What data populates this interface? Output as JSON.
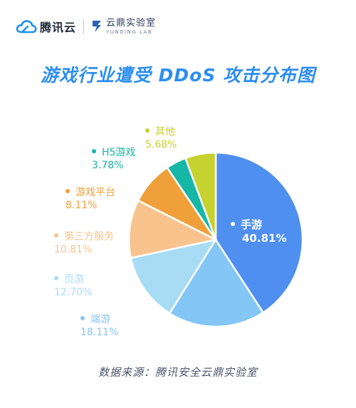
{
  "header": {
    "brand_name": "腾讯云",
    "lab_name": "云鼎实验室",
    "lab_name_en": "YUNDING LAB"
  },
  "chart_data": {
    "type": "pie",
    "title": "游戏行业遭受 DDoS 攻击分布图",
    "slices": [
      {
        "label": "手游",
        "value": 40.81,
        "value_text": "40.81%",
        "color": "#4f8ff0"
      },
      {
        "label": "端游",
        "value": 18.11,
        "value_text": "18.11%",
        "color": "#84c6f5"
      },
      {
        "label": "页游",
        "value": 12.7,
        "value_text": "12.70%",
        "color": "#a7dcf4"
      },
      {
        "label": "第三方服务",
        "value": 10.81,
        "value_text": "10.81%",
        "color": "#f9c38e"
      },
      {
        "label": "游戏平台",
        "value": 8.11,
        "value_text": "8.11%",
        "color": "#f0a03a"
      },
      {
        "label": "H5游戏",
        "value": 3.78,
        "value_text": "3.78%",
        "color": "#16b7a6"
      },
      {
        "label": "其他",
        "value": 5.68,
        "value_text": "5.68%",
        "color": "#c6d22f"
      }
    ],
    "source": "数据来源：腾讯安全云鼎实验室"
  }
}
